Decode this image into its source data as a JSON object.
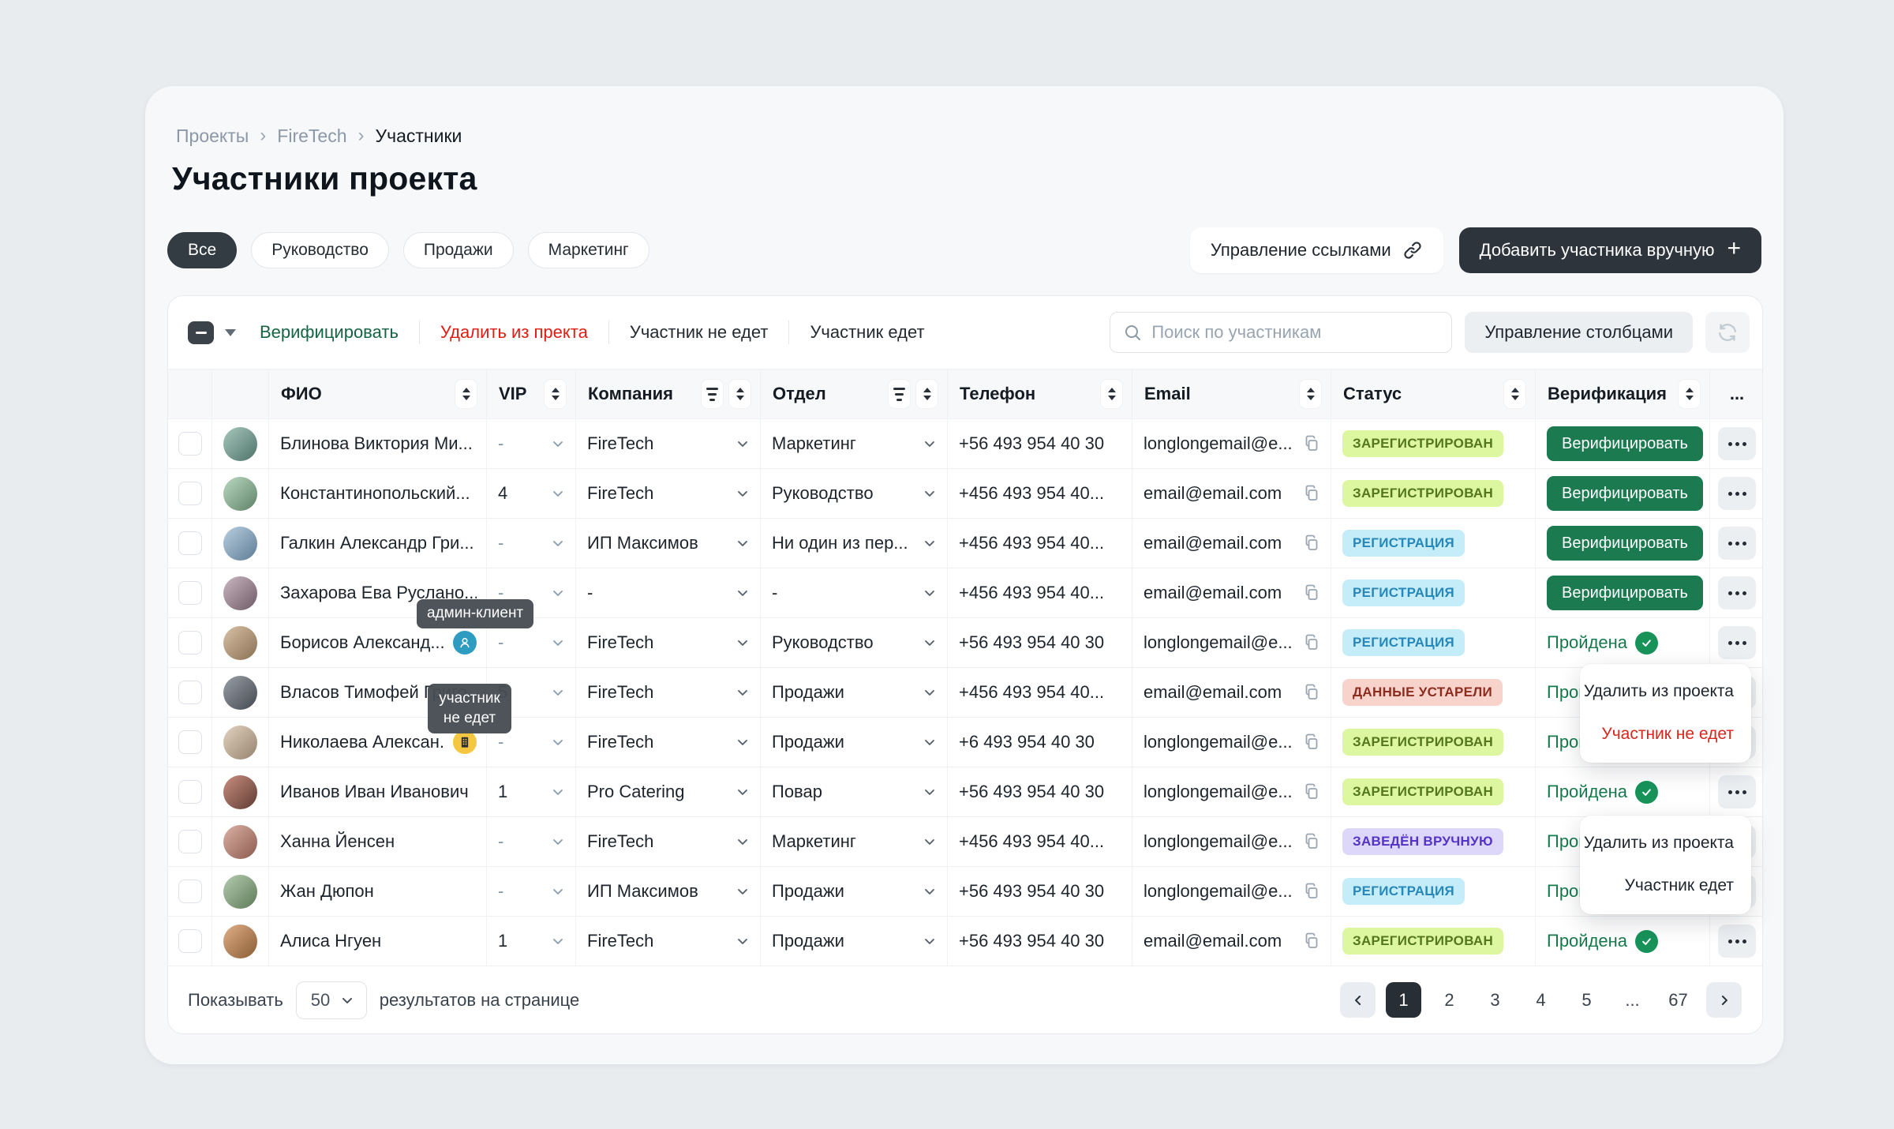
{
  "breadcrumb": {
    "items": [
      "Проекты",
      "FireTech",
      "Участники"
    ]
  },
  "page_title": "Участники проекта",
  "filter_chips": [
    {
      "label": "Все",
      "active": true
    },
    {
      "label": "Руководство",
      "active": false
    },
    {
      "label": "Продажи",
      "active": false
    },
    {
      "label": "Маркетинг",
      "active": false
    }
  ],
  "header_actions": {
    "manage_links": "Управление ссылками",
    "add_participant": "Добавить участника вручную"
  },
  "toolbar": {
    "bulk_actions": [
      {
        "label": "Верифицировать",
        "color": "green"
      },
      {
        "label": "Удалить из пректа",
        "color": "red"
      },
      {
        "label": "Участник не едет",
        "color": "dark"
      },
      {
        "label": "Участник едет",
        "color": "dark"
      }
    ],
    "search_placeholder": "Поиск по участникам",
    "manage_columns_label": "Управление столбцами"
  },
  "table": {
    "columns": [
      {
        "label": "",
        "key": "checkbox"
      },
      {
        "label": "",
        "key": "avatar"
      },
      {
        "label": "ФИО",
        "sort": true
      },
      {
        "label": "VIP",
        "sort": true
      },
      {
        "label": "Компания",
        "filter": true,
        "sort": true
      },
      {
        "label": "Отдел",
        "filter": true,
        "sort": true
      },
      {
        "label": "Телефон",
        "sort": true
      },
      {
        "label": "Email",
        "sort": true
      },
      {
        "label": "Статус",
        "sort": true
      },
      {
        "label": "Верификация",
        "sort": true
      },
      {
        "label": "...",
        "key": "actions"
      }
    ],
    "rows": [
      {
        "name": "Блинова Виктория Ми...",
        "marker": null,
        "vip": "-",
        "company": "FireTech",
        "department": "Маркетинг",
        "phone": "+56 493 954 40 30",
        "email": "longlongemail@e...",
        "status": "ЗАРЕГИСТРИРОВАН",
        "status_type": "registered",
        "verification": "button",
        "avatar": [
          "#a6c8bd",
          "#4f7268"
        ]
      },
      {
        "name": "Константинопольский...",
        "marker": null,
        "vip": "4",
        "company": "FireTech",
        "department": "Руководство",
        "phone": "+456 493 954 40...",
        "email": "email@email.com",
        "status": "ЗАРЕГИСТРИРОВАН",
        "status_type": "registered",
        "verification": "button",
        "avatar": [
          "#bcd9c2",
          "#5d8266"
        ]
      },
      {
        "name": "Галкин Александр Гри...",
        "marker": null,
        "vip": "-",
        "company": "ИП Максимов",
        "department": "Ни один из пер...",
        "phone": "+456 493 954 40...",
        "email": "email@email.com",
        "status": "РЕГИСТРАЦИЯ",
        "status_type": "registration",
        "verification": "button",
        "avatar": [
          "#b8cfe0",
          "#5e7c95"
        ]
      },
      {
        "name": "Захарова Ева Руслано...",
        "marker": null,
        "vip": "-",
        "company": "-",
        "department": "-",
        "phone": "+456 493 954 40...",
        "email": "email@email.com",
        "status": "РЕГИСТРАЦИЯ",
        "status_type": "registration",
        "verification": "button",
        "avatar": [
          "#cbb7c0",
          "#6d5a66"
        ]
      },
      {
        "name": "Борисов Александ...",
        "marker": "user",
        "vip": "-",
        "company": "FireTech",
        "department": "Руководство",
        "phone": "+56 493 954 40 30",
        "email": "longlongemail@e...",
        "status": "РЕГИСТРАЦИЯ",
        "status_type": "registration",
        "verification": "passed",
        "avatar": [
          "#d9c2a8",
          "#8a6f52"
        ]
      },
      {
        "name": "Власов Тимофей Григо...",
        "marker": null,
        "vip": "5",
        "company": "FireTech",
        "department": "Продажи",
        "phone": "+456 493 954 40...",
        "email": "email@email.com",
        "status": "ДАННЫЕ УСТАРЕЛИ",
        "status_type": "outdated",
        "verification": "passed",
        "avatar": [
          "#9aa0a8",
          "#43484f"
        ]
      },
      {
        "name": "Николаева Алексан...",
        "marker": "building",
        "vip": "-",
        "company": "FireTech",
        "department": "Продажи",
        "phone": "+6 493 954 40 30",
        "email": "longlongemail@e...",
        "status": "ЗАРЕГИСТРИРОВАН",
        "status_type": "registered",
        "verification": "passed",
        "avatar": [
          "#e3d3c0",
          "#94826d"
        ]
      },
      {
        "name": "Иванов Иван Иванович",
        "marker": null,
        "vip": "1",
        "company": "Pro Catering",
        "department": "Повар",
        "phone": "+56 493 954 40 30",
        "email": "longlongemail@e...",
        "status": "ЗАРЕГИСТРИРОВАН",
        "status_type": "registered",
        "verification": "passed",
        "avatar": [
          "#c98f80",
          "#5f3a32"
        ]
      },
      {
        "name": "Ханна Йенсен",
        "marker": null,
        "vip": "-",
        "company": "FireTech",
        "department": "Маркетинг",
        "phone": "+456 493 954 40...",
        "email": "longlongemail@e...",
        "status": "ЗАВЕДЁН ВРУЧНУЮ",
        "status_type": "manual",
        "verification": "passed",
        "avatar": [
          "#dbb1a6",
          "#8c5a4e"
        ]
      },
      {
        "name": "Жан Дюпон",
        "marker": null,
        "vip": "-",
        "company": "ИП Максимов",
        "department": "Продажи",
        "phone": "+56 493 954 40 30",
        "email": "longlongemail@e...",
        "status": "РЕГИСТРАЦИЯ",
        "status_type": "registration",
        "verification": "passed",
        "avatar": [
          "#b5ccb0",
          "#5c7a57"
        ]
      },
      {
        "name": "Алиса Нгуен",
        "marker": null,
        "vip": "1",
        "company": "FireTech",
        "department": "Продажи",
        "phone": "+56 493 954 40 30",
        "email": "email@email.com",
        "status": "ЗАРЕГИСТРИРОВАН",
        "status_type": "registered",
        "verification": "passed",
        "avatar": [
          "#e0b088",
          "#8a5c34"
        ]
      }
    ]
  },
  "status_styles": {
    "registered": {
      "bg": "#ddf6a0",
      "text": "#55771c"
    },
    "registration": {
      "bg": "#c5edf9",
      "text": "#2787b8"
    },
    "outdated": {
      "bg": "#f8d3cc",
      "text": "#8c2c1e"
    },
    "manual": {
      "bg": "#ddd7fa",
      "text": "#5433c8"
    }
  },
  "verification": {
    "button_label": "Верифицировать",
    "passed_label": "Пройдена"
  },
  "tooltips": {
    "admin_client": "админ-клиент",
    "participant_not_going": "участник не едет"
  },
  "context_menus": [
    {
      "items": [
        {
          "label": "Удалить из проекта",
          "danger": false
        },
        {
          "label": "Участник не едет",
          "danger": true
        }
      ]
    },
    {
      "items": [
        {
          "label": "Удалить из проекта",
          "danger": false
        },
        {
          "label": "Участник едет",
          "danger": false
        }
      ]
    }
  ],
  "footer": {
    "show_label": "Показывать",
    "per_page": "50",
    "results_label": "результатов на странице",
    "pages": [
      "1",
      "2",
      "3",
      "4",
      "5",
      "...",
      "67"
    ],
    "active_page": "1"
  },
  "colors": {
    "accent_green": "#1b7a4f",
    "danger_red": "#e01d12",
    "dark_button": "#2d343c",
    "passed_green": "#17794b"
  }
}
